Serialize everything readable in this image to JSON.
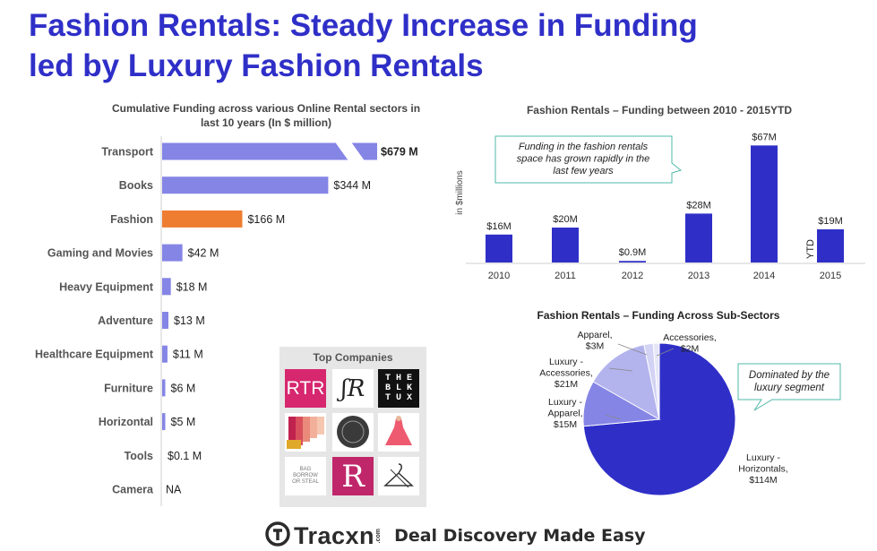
{
  "title": {
    "line1": "Fashion Rentals: Steady Increase in Funding",
    "line2": "led by Luxury Fashion Rentals"
  },
  "chart_data": [
    {
      "type": "bar",
      "orientation": "horizontal",
      "title": "Cumulative Funding across various Online Rental sectors in last 10 years (In $ million)",
      "title_line1": "Cumulative Funding across various Online Rental sectors in",
      "title_line2": "last 10 years (In $ million)",
      "categories": [
        "Transport",
        "Books",
        "Fashion",
        "Gaming and Movies",
        "Heavy Equipment",
        "Adventure",
        "Healthcare Equipment",
        "Furniture",
        "Horizontal",
        "Tools",
        "Camera"
      ],
      "values": [
        679,
        344,
        166,
        42,
        18,
        13,
        11,
        6,
        5,
        0.1,
        null
      ],
      "labels": [
        "$679 M",
        "$344 M",
        "$166 M",
        "$42 M",
        "$18 M",
        "$13 M",
        "$11 M",
        "$6 M",
        "$5 M",
        "$0.1 M",
        "NA"
      ],
      "highlight": "Fashion",
      "colors": {
        "bar": "#8585e6",
        "highlight": "#ee7d31"
      },
      "axis_break": "Transport"
    },
    {
      "type": "bar",
      "title": "Fashion Rentals – Funding between 2010 - 2015YTD",
      "ylabel": "in $millions",
      "categories": [
        "2010",
        "2011",
        "2012",
        "2013",
        "2014",
        "2015"
      ],
      "values": [
        16,
        20,
        0.9,
        28,
        67,
        19
      ],
      "labels": [
        "$16M",
        "$20M",
        "$0.9M",
        "$28M",
        "$67M",
        "$19M"
      ],
      "ytd_label": "YTD",
      "color": "#2f2fc8",
      "annotation": "Funding in the fashion rentals space has grown rapidly in the last few years",
      "annotation_lines": [
        "Funding in the fashion rentals",
        "space has grown rapidly in the",
        "last few years"
      ]
    },
    {
      "type": "pie",
      "title": "Fashion Rentals – Funding Across Sub-Sectors",
      "slices": [
        {
          "name": "Luxury - Horizontals",
          "value": 114,
          "label_lines": [
            "Luxury -",
            "Horizontals,",
            "$114M"
          ],
          "color": "#2f2fc8"
        },
        {
          "name": "Luxury - Apparel",
          "value": 15,
          "label_lines": [
            "Luxury -",
            "Apparel,",
            "$15M"
          ],
          "color": "#8585e6"
        },
        {
          "name": "Luxury - Accessories",
          "value": 21,
          "label_lines": [
            "Luxury -",
            "Accessories,",
            "$21M"
          ],
          "color": "#b3b3ee"
        },
        {
          "name": "Apparel",
          "value": 3,
          "label_lines": [
            "Apparel,",
            "$3M"
          ],
          "color": "#d3d3f5"
        },
        {
          "name": "Accessories",
          "value": 2,
          "label_lines": [
            "Accessories,",
            "$2M"
          ],
          "color": "#e6e6f8"
        }
      ],
      "annotation": "Dominated by the luxury segment",
      "annotation_lines": [
        "Dominated by the",
        "luxury segment"
      ]
    }
  ],
  "companies": {
    "title": "Top Companies",
    "rtr": "RTR",
    "sr": "ʃR",
    "blk": "T H E\nB L K\nT U X",
    "bag": "BAG\nBORROW\nOR STEAL",
    "r": "R"
  },
  "footer": {
    "brand": "Tracxn",
    "com": ".com",
    "tagline": "Deal Discovery Made Easy"
  }
}
